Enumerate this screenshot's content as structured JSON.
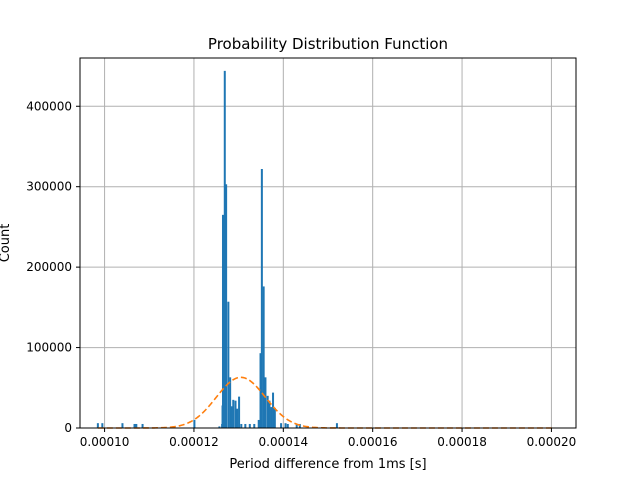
{
  "chart_data": {
    "type": "bar",
    "title": "Probability Distribution Function",
    "xlabel": "Period difference from 1ms [s]",
    "ylabel": "Count",
    "xlim": [
      9.45e-05,
      0.0002055
    ],
    "ylim": [
      0,
      460000
    ],
    "grid": true,
    "x_ticks": [
      0.0001,
      0.00012,
      0.00014,
      0.00016,
      0.00018,
      0.0002
    ],
    "x_tick_labels": [
      "0.00010",
      "0.00012",
      "0.00014",
      "0.00016",
      "0.00018",
      "0.00020"
    ],
    "y_ticks": [
      0,
      100000,
      200000,
      300000,
      400000
    ],
    "y_tick_labels": [
      "0",
      "100000",
      "200000",
      "300000",
      "400000"
    ],
    "colors": {
      "histogram": "#1f77b4",
      "fit": "#ff7f0e",
      "grid": "#b0b0b0"
    },
    "series": [
      {
        "kind": "histogram",
        "bin_width": 4.5e-07,
        "bins": [
          [
            9.85e-05,
            6000
          ],
          [
            9.95e-05,
            6000
          ],
          [
            0.000104,
            6000
          ],
          [
            0.0001067,
            5000
          ],
          [
            0.0001071,
            5000
          ],
          [
            0.0001085,
            5000
          ],
          [
            0.0001201,
            10000
          ],
          [
            0.0001257,
            2000
          ],
          [
            0.0001263,
            5000
          ],
          [
            0.0001264,
            28000
          ],
          [
            0.0001265,
            265000
          ],
          [
            0.0001269,
            444000
          ],
          [
            0.0001272,
            303000
          ],
          [
            0.0001277,
            157000
          ],
          [
            0.0001281,
            63000
          ],
          [
            0.0001284,
            27000
          ],
          [
            0.0001288,
            35000
          ],
          [
            0.0001293,
            34000
          ],
          [
            0.0001297,
            24000
          ],
          [
            0.0001301,
            39000
          ],
          [
            0.0001306,
            5000
          ],
          [
            0.0001315,
            5000
          ],
          [
            0.0001325,
            5000
          ],
          [
            0.0001335,
            5000
          ],
          [
            0.0001345,
            10000
          ],
          [
            0.0001349,
            93000
          ],
          [
            0.0001352,
            322000
          ],
          [
            0.0001356,
            176000
          ],
          [
            0.000136,
            63000
          ],
          [
            0.0001365,
            40000
          ],
          [
            0.0001369,
            34000
          ],
          [
            0.0001373,
            26000
          ],
          [
            0.0001377,
            44000
          ],
          [
            0.0001381,
            25000
          ],
          [
            0.0001395,
            6000
          ],
          [
            0.0001405,
            6000
          ],
          [
            0.000141,
            5000
          ],
          [
            0.000143,
            5000
          ],
          [
            0.0001437,
            5000
          ],
          [
            0.000152,
            6000
          ]
        ]
      },
      {
        "kind": "fit-line",
        "style": "dashed",
        "mean": 0.0001305,
        "std": 5.5e-06,
        "peak": 63000,
        "x_range": [
          9.85e-05,
          0.0002005
        ]
      }
    ]
  }
}
